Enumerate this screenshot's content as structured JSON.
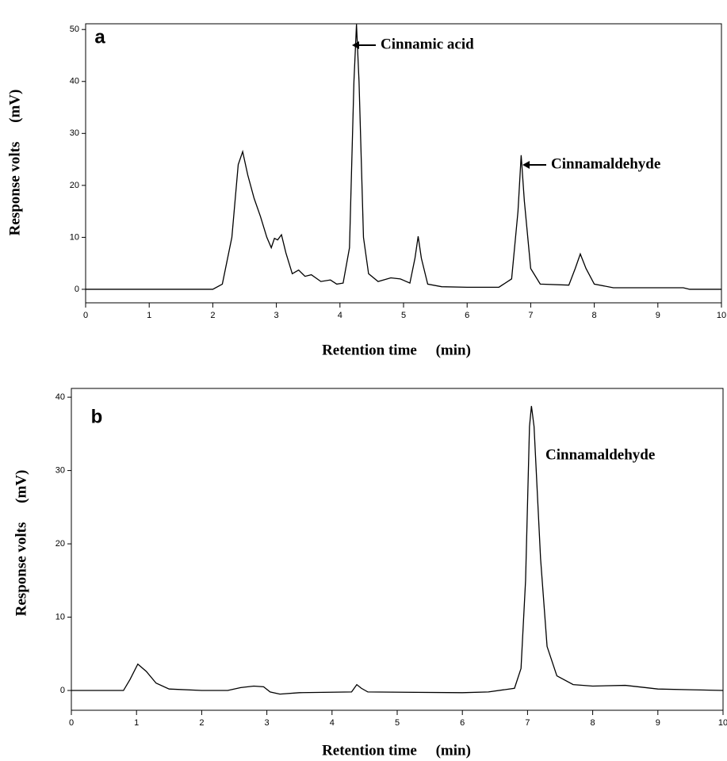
{
  "chart_data": [
    {
      "type": "line",
      "panel": "a",
      "xlabel": "Retention time     (min)",
      "ylabel": "Response volts     (mV)",
      "annotations": [
        "Cinnamic acid",
        "Cinnamaldehyde"
      ],
      "color": "#000000",
      "xlim": [
        0,
        10
      ],
      "ylim": [
        -2.6,
        51.1
      ],
      "xticks": [
        0,
        1,
        2,
        3,
        4,
        5,
        6,
        7,
        8,
        9,
        10
      ],
      "yticks": [
        0,
        10,
        20,
        30,
        40,
        50
      ],
      "x": [
        0,
        2.0,
        2.15,
        2.3,
        2.4,
        2.47,
        2.55,
        2.65,
        2.75,
        2.85,
        2.92,
        2.97,
        3.02,
        3.08,
        3.15,
        3.25,
        3.35,
        3.45,
        3.55,
        3.7,
        3.85,
        3.95,
        4.05,
        4.15,
        4.22,
        4.26,
        4.3,
        4.37,
        4.45,
        4.6,
        4.8,
        4.95,
        5.1,
        5.18,
        5.23,
        5.28,
        5.38,
        5.6,
        6.0,
        6.5,
        6.7,
        6.8,
        6.85,
        6.9,
        7.0,
        7.15,
        7.6,
        7.7,
        7.78,
        7.87,
        8.0,
        8.3,
        9.4,
        9.5,
        10
      ],
      "values": [
        0,
        0,
        1,
        10,
        24,
        26.5,
        22,
        17.5,
        14,
        10,
        8,
        9.8,
        9.5,
        10.5,
        7,
        3,
        3.7,
        2.5,
        2.8,
        1.5,
        1.8,
        1.0,
        1.2,
        8,
        40,
        51,
        40,
        10,
        3,
        1.5,
        2.2,
        2.0,
        1.2,
        6,
        10.2,
        6,
        1,
        0.5,
        0.4,
        0.4,
        2,
        15,
        25.8,
        17,
        4,
        1,
        0.8,
        4,
        6.8,
        4,
        1,
        0.3,
        0.3,
        0,
        0
      ]
    },
    {
      "type": "line",
      "panel": "b",
      "xlabel": "Retention time     (min)",
      "ylabel": "Response volts     (mV)",
      "annotations": [
        "Cinnamaldehyde"
      ],
      "color": "#000000",
      "xlim": [
        0,
        10
      ],
      "ylim": [
        -2.7,
        41.2
      ],
      "xticks": [
        0,
        1,
        2,
        3,
        4,
        5,
        6,
        7,
        8,
        9,
        10
      ],
      "yticks": [
        0,
        10,
        20,
        30,
        40
      ],
      "x": [
        0,
        0.8,
        0.9,
        1.02,
        1.15,
        1.3,
        1.5,
        2.0,
        2.4,
        2.6,
        2.8,
        2.95,
        3.05,
        3.2,
        3.5,
        4.3,
        4.38,
        4.45,
        4.55,
        6.0,
        6.4,
        6.8,
        6.9,
        6.97,
        7.03,
        7.06,
        7.1,
        7.2,
        7.3,
        7.45,
        7.7,
        8.0,
        8.5,
        8.8,
        9.0,
        9.5,
        10
      ],
      "values": [
        0,
        0,
        1.5,
        3.6,
        2.6,
        1,
        0.2,
        0,
        0,
        0.4,
        0.6,
        0.5,
        -0.2,
        -0.5,
        -0.3,
        -0.2,
        0.8,
        0.3,
        -0.2,
        -0.3,
        -0.2,
        0.3,
        3,
        15,
        36,
        38.8,
        36,
        18,
        6,
        2,
        0.8,
        0.6,
        0.7,
        0.4,
        0.2,
        0.1,
        0
      ]
    }
  ]
}
